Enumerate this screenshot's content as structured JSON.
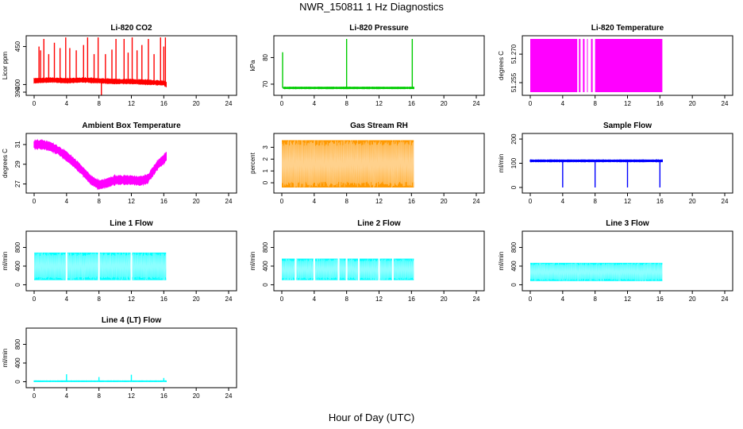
{
  "figure": {
    "title": "NWR_150811  1 Hz Diagnostics",
    "xlabel": "Hour of Day (UTC)"
  },
  "chart_data": [
    {
      "type": "line",
      "title": "Li-820 CO2",
      "ylabel": "Licor ppm",
      "color": "#ff0000",
      "xlim": [
        0,
        24
      ],
      "ylim": [
        390,
        460
      ],
      "xticks": [
        "0",
        "4",
        "8",
        "12",
        "16",
        "20",
        "24"
      ],
      "yticks": [
        "390",
        "400",
        "450"
      ],
      "base": {
        "x": [
          0,
          2,
          4,
          6,
          8,
          10,
          11,
          12,
          14,
          16,
          16.3
        ],
        "y": [
          405,
          406,
          405,
          406,
          405,
          404,
          404,
          404,
          403,
          402,
          400
        ]
      },
      "spikes": [
        [
          0.6,
          450
        ],
        [
          0.8,
          445
        ],
        [
          1.2,
          460
        ],
        [
          1.8,
          440
        ],
        [
          2.5,
          455
        ],
        [
          3.2,
          448
        ],
        [
          3.9,
          462
        ],
        [
          4.4,
          448
        ],
        [
          5.2,
          445
        ],
        [
          6.1,
          452
        ],
        [
          6.6,
          462
        ],
        [
          7.4,
          440
        ],
        [
          7.9,
          462
        ],
        [
          8.3,
          380
        ],
        [
          8.8,
          440
        ],
        [
          9.6,
          446
        ],
        [
          10.1,
          460
        ],
        [
          11.1,
          460
        ],
        [
          11.6,
          442
        ],
        [
          12.1,
          462
        ],
        [
          12.7,
          445
        ],
        [
          13.3,
          452
        ],
        [
          14.1,
          460
        ],
        [
          14.8,
          440
        ],
        [
          15.6,
          462
        ],
        [
          16,
          450
        ],
        [
          16.2,
          462
        ]
      ],
      "band": 3
    },
    {
      "type": "line",
      "title": "Li-820 Pressure",
      "ylabel": "kPa",
      "color": "#00cc00",
      "xlim": [
        0,
        24
      ],
      "ylim": [
        67,
        87
      ],
      "xticks": [
        "0",
        "4",
        "8",
        "12",
        "16",
        "20",
        "24"
      ],
      "yticks": [
        "70",
        "80"
      ],
      "base": {
        "x": [
          0.2,
          16.3
        ],
        "y": [
          68.6,
          68.6
        ]
      },
      "spikes": [
        [
          0.1,
          82
        ],
        [
          8,
          87
        ],
        [
          16.1,
          87
        ]
      ],
      "band": 0.3
    },
    {
      "type": "area",
      "title": "Li-820 Temperature",
      "ylabel": "degrees C",
      "color": "#ff00ff",
      "xlim": [
        0,
        24
      ],
      "ylim": [
        51.25,
        51.278
      ],
      "xticks": [
        "0",
        "4",
        "8",
        "12",
        "16",
        "20",
        "24"
      ],
      "yticks": [
        "51.255",
        "51.270"
      ],
      "fill_ranges": [
        [
          0,
          5.8
        ],
        [
          6.0,
          6.2
        ],
        [
          6.5,
          6.7
        ],
        [
          7.0,
          7.1
        ],
        [
          7.5,
          7.7
        ],
        [
          8.0,
          16.3
        ]
      ],
      "fill_y": [
        51.25,
        51.278
      ]
    },
    {
      "type": "line",
      "title": "Ambient Box Temperature",
      "ylabel": "degrees C",
      "color": "#ff00ff",
      "xlim": [
        0,
        24
      ],
      "ylim": [
        26.4,
        31.8
      ],
      "xticks": [
        "0",
        "4",
        "8",
        "12",
        "16",
        "20",
        "24"
      ],
      "yticks": [
        "27",
        "29",
        "31"
      ],
      "base": {
        "x": [
          0,
          1,
          2,
          3,
          4,
          5,
          6,
          7,
          8,
          9,
          10,
          11,
          12,
          13,
          14,
          14.7,
          15.3,
          16,
          16.3
        ],
        "y": [
          31,
          31,
          30.8,
          30.4,
          29.8,
          29.1,
          28.3,
          27.4,
          26.9,
          27.1,
          27.4,
          27.4,
          27.4,
          27.3,
          27.5,
          28.3,
          29.0,
          29.5,
          29.8
        ]
      },
      "band": 0.45
    },
    {
      "type": "area",
      "title": "Gas Stream RH",
      "ylabel": "percent",
      "color": "#ff9900",
      "xlim": [
        0,
        24
      ],
      "ylim": [
        -0.6,
        3.9
      ],
      "xticks": [
        "0",
        "4",
        "8",
        "12",
        "16",
        "20",
        "24"
      ],
      "yticks": [
        "0",
        "1",
        "2",
        "3"
      ],
      "fill_ranges": [
        [
          0,
          16.3
        ]
      ],
      "fill_y": [
        -0.4,
        3.6
      ]
    },
    {
      "type": "line",
      "title": "Sample Flow",
      "ylabel": "ml/min",
      "color": "#0000ff",
      "xlim": [
        0,
        24
      ],
      "ylim": [
        -10,
        210
      ],
      "xticks": [
        "0",
        "4",
        "8",
        "12",
        "16",
        "20",
        "24"
      ],
      "yticks": [
        "0",
        "100",
        "200"
      ],
      "base": {
        "x": [
          0,
          16.3
        ],
        "y": [
          110,
          110
        ]
      },
      "spikes": [
        [
          4,
          0
        ],
        [
          8,
          0
        ],
        [
          12,
          0
        ],
        [
          16,
          0
        ]
      ],
      "band": 4
    },
    {
      "type": "area",
      "title": "Line 1 Flow",
      "ylabel": "ml/min",
      "color": "#00ffff",
      "xlim": [
        0,
        24
      ],
      "ylim": [
        -60,
        1080
      ],
      "xticks": [
        "0",
        "4",
        "8",
        "12",
        "16",
        "20",
        "24"
      ],
      "yticks": [
        "0",
        "400",
        "800"
      ],
      "fill_ranges": [
        [
          0,
          3.9
        ],
        [
          4.1,
          7.9
        ],
        [
          8.1,
          11.9
        ],
        [
          12.1,
          16.3
        ]
      ],
      "fill_y": [
        100,
        690
      ]
    },
    {
      "type": "area",
      "title": "Line 2 Flow",
      "ylabel": "ml/min",
      "color": "#00ffff",
      "xlim": [
        0,
        24
      ],
      "ylim": [
        -60,
        1080
      ],
      "xticks": [
        "0",
        "4",
        "8",
        "12",
        "16",
        "20",
        "24"
      ],
      "yticks": [
        "0",
        "400",
        "800"
      ],
      "fill_ranges": [
        [
          0,
          1.6
        ],
        [
          1.8,
          3.9
        ],
        [
          4.1,
          6.9
        ],
        [
          7.1,
          7.9
        ],
        [
          8.1,
          9.4
        ],
        [
          9.6,
          11.9
        ],
        [
          12.1,
          13.6
        ],
        [
          13.8,
          16.3
        ]
      ],
      "fill_y": [
        100,
        560
      ]
    },
    {
      "type": "area",
      "title": "Line 3 Flow",
      "ylabel": "ml/min",
      "color": "#00ffff",
      "xlim": [
        0,
        24
      ],
      "ylim": [
        -60,
        1080
      ],
      "xticks": [
        "0",
        "4",
        "8",
        "12",
        "16",
        "20",
        "24"
      ],
      "yticks": [
        "0",
        "400",
        "800"
      ],
      "fill_ranges": [
        [
          0,
          16.3
        ]
      ],
      "fill_y": [
        80,
        470
      ]
    },
    {
      "type": "line",
      "title": "Line 4 (LT) Flow",
      "ylabel": "ml/min",
      "color": "#00ffff",
      "xlim": [
        0,
        24
      ],
      "ylim": [
        -60,
        1080
      ],
      "xticks": [
        "0",
        "4",
        "8",
        "12",
        "16",
        "20",
        "24"
      ],
      "yticks": [
        "0",
        "400",
        "800"
      ],
      "base": {
        "x": [
          0,
          16.3
        ],
        "y": [
          10,
          10
        ]
      },
      "spikes": [
        [
          4,
          160
        ],
        [
          8,
          100
        ],
        [
          12,
          150
        ],
        [
          16,
          80
        ]
      ],
      "band": 8
    }
  ]
}
